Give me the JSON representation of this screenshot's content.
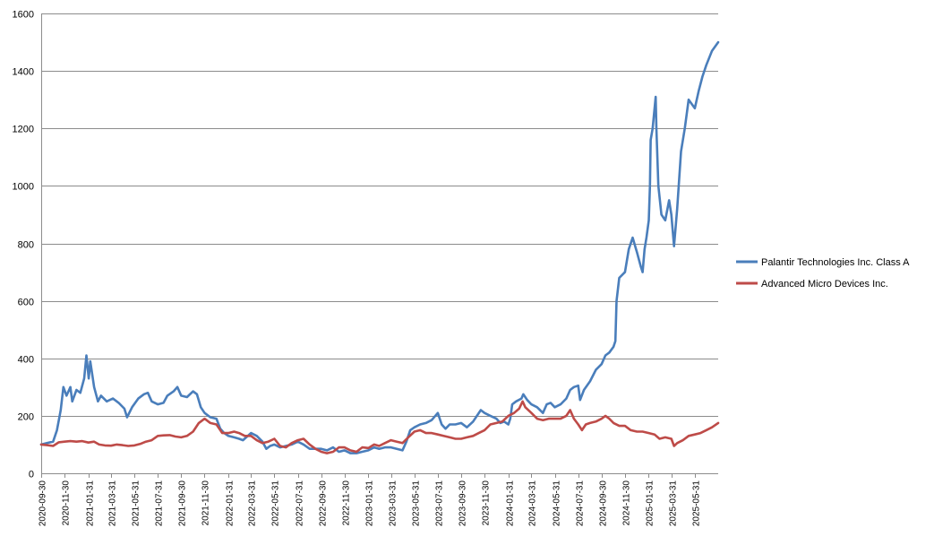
{
  "chart_data": {
    "type": "line",
    "title": "",
    "xlabel": "",
    "ylabel": "",
    "ylim": [
      0,
      1600
    ],
    "y_ticks": [
      0,
      200,
      400,
      600,
      800,
      1000,
      1200,
      1400,
      1600
    ],
    "x_range": [
      "2020-09-30",
      "2025-07-31"
    ],
    "x_tick_labels": [
      "2020-09-30",
      "2020-11-30",
      "2021-01-31",
      "2021-03-31",
      "2021-05-31",
      "2021-07-31",
      "2021-09-30",
      "2021-11-30",
      "2022-01-31",
      "2022-03-31",
      "2022-05-31",
      "2022-07-31",
      "2022-09-30",
      "2022-11-30",
      "2023-01-31",
      "2023-03-31",
      "2023-05-31",
      "2023-07-31",
      "2023-09-30",
      "2023-11-30",
      "2024-01-31",
      "2024-03-31",
      "2024-05-31",
      "2024-07-31",
      "2024-09-30",
      "2024-11-30",
      "2025-01-31",
      "2025-03-31",
      "2025-05-31"
    ],
    "grid": "horizontal",
    "legend_position": "right",
    "series": [
      {
        "name": "Palantir Technologies Inc. Class A",
        "color": "#4a7ebb",
        "points": [
          [
            "2020-09-30",
            100
          ],
          [
            "2020-10-15",
            105
          ],
          [
            "2020-10-31",
            110
          ],
          [
            "2020-11-10",
            150
          ],
          [
            "2020-11-20",
            220
          ],
          [
            "2020-11-27",
            300
          ],
          [
            "2020-12-05",
            270
          ],
          [
            "2020-12-15",
            300
          ],
          [
            "2020-12-20",
            250
          ],
          [
            "2020-12-31",
            290
          ],
          [
            "2021-01-10",
            280
          ],
          [
            "2021-01-20",
            330
          ],
          [
            "2021-01-26",
            410
          ],
          [
            "2021-02-01",
            330
          ],
          [
            "2021-02-05",
            390
          ],
          [
            "2021-02-15",
            300
          ],
          [
            "2021-02-25",
            250
          ],
          [
            "2021-03-05",
            270
          ],
          [
            "2021-03-20",
            250
          ],
          [
            "2021-04-05",
            260
          ],
          [
            "2021-04-20",
            245
          ],
          [
            "2021-05-05",
            225
          ],
          [
            "2021-05-12",
            195
          ],
          [
            "2021-05-25",
            230
          ],
          [
            "2021-06-10",
            260
          ],
          [
            "2021-06-25",
            275
          ],
          [
            "2021-07-05",
            280
          ],
          [
            "2021-07-15",
            250
          ],
          [
            "2021-07-31",
            240
          ],
          [
            "2021-08-15",
            245
          ],
          [
            "2021-08-25",
            270
          ],
          [
            "2021-09-10",
            285
          ],
          [
            "2021-09-20",
            300
          ],
          [
            "2021-09-30",
            270
          ],
          [
            "2021-10-15",
            265
          ],
          [
            "2021-10-31",
            285
          ],
          [
            "2021-11-10",
            275
          ],
          [
            "2021-11-20",
            230
          ],
          [
            "2021-11-30",
            210
          ],
          [
            "2021-12-15",
            195
          ],
          [
            "2021-12-31",
            190
          ],
          [
            "2022-01-10",
            155
          ],
          [
            "2022-01-20",
            140
          ],
          [
            "2022-01-31",
            130
          ],
          [
            "2022-02-15",
            125
          ],
          [
            "2022-02-28",
            120
          ],
          [
            "2022-03-10",
            115
          ],
          [
            "2022-03-31",
            140
          ],
          [
            "2022-04-15",
            130
          ],
          [
            "2022-04-30",
            110
          ],
          [
            "2022-05-10",
            85
          ],
          [
            "2022-05-20",
            95
          ],
          [
            "2022-05-31",
            100
          ],
          [
            "2022-06-15",
            90
          ],
          [
            "2022-06-30",
            95
          ],
          [
            "2022-07-15",
            100
          ],
          [
            "2022-07-31",
            110
          ],
          [
            "2022-08-15",
            100
          ],
          [
            "2022-08-31",
            85
          ],
          [
            "2022-09-15",
            85
          ],
          [
            "2022-09-30",
            85
          ],
          [
            "2022-10-15",
            80
          ],
          [
            "2022-10-31",
            90
          ],
          [
            "2022-11-15",
            75
          ],
          [
            "2022-11-30",
            80
          ],
          [
            "2022-12-15",
            70
          ],
          [
            "2022-12-31",
            70
          ],
          [
            "2023-01-15",
            75
          ],
          [
            "2023-01-31",
            80
          ],
          [
            "2023-02-15",
            90
          ],
          [
            "2023-02-28",
            85
          ],
          [
            "2023-03-15",
            90
          ],
          [
            "2023-03-31",
            90
          ],
          [
            "2023-04-15",
            85
          ],
          [
            "2023-04-30",
            80
          ],
          [
            "2023-05-10",
            110
          ],
          [
            "2023-05-20",
            150
          ],
          [
            "2023-05-31",
            160
          ],
          [
            "2023-06-15",
            170
          ],
          [
            "2023-06-30",
            175
          ],
          [
            "2023-07-15",
            185
          ],
          [
            "2023-07-31",
            210
          ],
          [
            "2023-08-10",
            170
          ],
          [
            "2023-08-20",
            155
          ],
          [
            "2023-08-31",
            170
          ],
          [
            "2023-09-15",
            170
          ],
          [
            "2023-09-30",
            175
          ],
          [
            "2023-10-15",
            160
          ],
          [
            "2023-10-31",
            180
          ],
          [
            "2023-11-10",
            200
          ],
          [
            "2023-11-20",
            220
          ],
          [
            "2023-11-30",
            210
          ],
          [
            "2023-12-15",
            200
          ],
          [
            "2023-12-31",
            190
          ],
          [
            "2024-01-10",
            175
          ],
          [
            "2024-01-20",
            180
          ],
          [
            "2024-01-31",
            170
          ],
          [
            "2024-02-05",
            190
          ],
          [
            "2024-02-10",
            240
          ],
          [
            "2024-02-20",
            250
          ],
          [
            "2024-03-05",
            260
          ],
          [
            "2024-03-10",
            275
          ],
          [
            "2024-03-20",
            255
          ],
          [
            "2024-03-31",
            240
          ],
          [
            "2024-04-15",
            230
          ],
          [
            "2024-04-30",
            210
          ],
          [
            "2024-05-10",
            240
          ],
          [
            "2024-05-20",
            245
          ],
          [
            "2024-05-31",
            230
          ],
          [
            "2024-06-15",
            240
          ],
          [
            "2024-06-30",
            260
          ],
          [
            "2024-07-10",
            290
          ],
          [
            "2024-07-20",
            300
          ],
          [
            "2024-07-31",
            305
          ],
          [
            "2024-08-05",
            255
          ],
          [
            "2024-08-15",
            290
          ],
          [
            "2024-08-31",
            320
          ],
          [
            "2024-09-15",
            360
          ],
          [
            "2024-09-30",
            380
          ],
          [
            "2024-10-10",
            410
          ],
          [
            "2024-10-20",
            420
          ],
          [
            "2024-10-31",
            440
          ],
          [
            "2024-11-05",
            460
          ],
          [
            "2024-11-08",
            600
          ],
          [
            "2024-11-15",
            680
          ],
          [
            "2024-11-30",
            700
          ],
          [
            "2024-12-10",
            780
          ],
          [
            "2024-12-20",
            820
          ],
          [
            "2024-12-31",
            770
          ],
          [
            "2025-01-10",
            720
          ],
          [
            "2025-01-15",
            700
          ],
          [
            "2025-01-20",
            780
          ],
          [
            "2025-01-25",
            820
          ],
          [
            "2025-01-31",
            880
          ],
          [
            "2025-02-03",
            1000
          ],
          [
            "2025-02-05",
            1160
          ],
          [
            "2025-02-10",
            1200
          ],
          [
            "2025-02-18",
            1310
          ],
          [
            "2025-02-20",
            1200
          ],
          [
            "2025-02-25",
            1000
          ],
          [
            "2025-03-05",
            900
          ],
          [
            "2025-03-15",
            880
          ],
          [
            "2025-03-25",
            950
          ],
          [
            "2025-03-31",
            900
          ],
          [
            "2025-04-07",
            790
          ],
          [
            "2025-04-15",
            920
          ],
          [
            "2025-04-25",
            1120
          ],
          [
            "2025-05-05",
            1200
          ],
          [
            "2025-05-15",
            1300
          ],
          [
            "2025-05-31",
            1270
          ],
          [
            "2025-06-10",
            1330
          ],
          [
            "2025-06-20",
            1380
          ],
          [
            "2025-06-30",
            1420
          ],
          [
            "2025-07-15",
            1470
          ],
          [
            "2025-07-31",
            1500
          ]
        ]
      },
      {
        "name": "Advanced Micro Devices Inc.",
        "color": "#be4b48",
        "points": [
          [
            "2020-09-30",
            100
          ],
          [
            "2020-10-15",
            98
          ],
          [
            "2020-10-31",
            95
          ],
          [
            "2020-11-15",
            108
          ],
          [
            "2020-11-30",
            110
          ],
          [
            "2020-12-15",
            112
          ],
          [
            "2020-12-31",
            110
          ],
          [
            "2021-01-15",
            112
          ],
          [
            "2021-01-31",
            107
          ],
          [
            "2021-02-15",
            110
          ],
          [
            "2021-02-28",
            100
          ],
          [
            "2021-03-15",
            97
          ],
          [
            "2021-03-31",
            96
          ],
          [
            "2021-04-15",
            100
          ],
          [
            "2021-04-30",
            98
          ],
          [
            "2021-05-15",
            95
          ],
          [
            "2021-05-31",
            97
          ],
          [
            "2021-06-15",
            102
          ],
          [
            "2021-06-30",
            110
          ],
          [
            "2021-07-15",
            115
          ],
          [
            "2021-07-31",
            130
          ],
          [
            "2021-08-15",
            132
          ],
          [
            "2021-08-31",
            133
          ],
          [
            "2021-09-15",
            128
          ],
          [
            "2021-09-30",
            125
          ],
          [
            "2021-10-15",
            130
          ],
          [
            "2021-10-31",
            145
          ],
          [
            "2021-11-15",
            175
          ],
          [
            "2021-11-30",
            190
          ],
          [
            "2021-12-15",
            175
          ],
          [
            "2021-12-31",
            170
          ],
          [
            "2022-01-15",
            140
          ],
          [
            "2022-01-31",
            140
          ],
          [
            "2022-02-15",
            145
          ],
          [
            "2022-02-28",
            140
          ],
          [
            "2022-03-15",
            130
          ],
          [
            "2022-03-31",
            130
          ],
          [
            "2022-04-15",
            115
          ],
          [
            "2022-04-30",
            105
          ],
          [
            "2022-05-15",
            110
          ],
          [
            "2022-05-31",
            120
          ],
          [
            "2022-06-15",
            95
          ],
          [
            "2022-06-30",
            90
          ],
          [
            "2022-07-15",
            105
          ],
          [
            "2022-07-31",
            115
          ],
          [
            "2022-08-15",
            120
          ],
          [
            "2022-08-31",
            100
          ],
          [
            "2022-09-15",
            85
          ],
          [
            "2022-09-30",
            75
          ],
          [
            "2022-10-15",
            70
          ],
          [
            "2022-10-31",
            75
          ],
          [
            "2022-11-15",
            90
          ],
          [
            "2022-11-30",
            90
          ],
          [
            "2022-12-15",
            80
          ],
          [
            "2022-12-31",
            75
          ],
          [
            "2023-01-15",
            90
          ],
          [
            "2023-01-31",
            88
          ],
          [
            "2023-02-15",
            100
          ],
          [
            "2023-02-28",
            95
          ],
          [
            "2023-03-15",
            105
          ],
          [
            "2023-03-31",
            115
          ],
          [
            "2023-04-15",
            110
          ],
          [
            "2023-04-30",
            105
          ],
          [
            "2023-05-15",
            125
          ],
          [
            "2023-05-31",
            145
          ],
          [
            "2023-06-15",
            150
          ],
          [
            "2023-06-30",
            140
          ],
          [
            "2023-07-15",
            140
          ],
          [
            "2023-07-31",
            135
          ],
          [
            "2023-08-15",
            130
          ],
          [
            "2023-08-31",
            125
          ],
          [
            "2023-09-15",
            120
          ],
          [
            "2023-09-30",
            120
          ],
          [
            "2023-10-15",
            125
          ],
          [
            "2023-10-31",
            130
          ],
          [
            "2023-11-15",
            140
          ],
          [
            "2023-11-30",
            150
          ],
          [
            "2023-12-15",
            170
          ],
          [
            "2023-12-31",
            175
          ],
          [
            "2024-01-15",
            180
          ],
          [
            "2024-01-31",
            200
          ],
          [
            "2024-02-15",
            210
          ],
          [
            "2024-02-28",
            225
          ],
          [
            "2024-03-08",
            250
          ],
          [
            "2024-03-15",
            230
          ],
          [
            "2024-03-31",
            210
          ],
          [
            "2024-04-15",
            190
          ],
          [
            "2024-04-30",
            185
          ],
          [
            "2024-05-15",
            190
          ],
          [
            "2024-05-31",
            190
          ],
          [
            "2024-06-15",
            190
          ],
          [
            "2024-06-30",
            200
          ],
          [
            "2024-07-10",
            220
          ],
          [
            "2024-07-20",
            190
          ],
          [
            "2024-07-31",
            170
          ],
          [
            "2024-08-10",
            150
          ],
          [
            "2024-08-20",
            170
          ],
          [
            "2024-08-31",
            175
          ],
          [
            "2024-09-15",
            180
          ],
          [
            "2024-09-30",
            190
          ],
          [
            "2024-10-10",
            200
          ],
          [
            "2024-10-20",
            190
          ],
          [
            "2024-10-31",
            175
          ],
          [
            "2024-11-15",
            165
          ],
          [
            "2024-11-30",
            165
          ],
          [
            "2024-12-15",
            150
          ],
          [
            "2024-12-31",
            145
          ],
          [
            "2025-01-15",
            145
          ],
          [
            "2025-01-31",
            140
          ],
          [
            "2025-02-15",
            135
          ],
          [
            "2025-02-28",
            120
          ],
          [
            "2025-03-15",
            125
          ],
          [
            "2025-03-31",
            120
          ],
          [
            "2025-04-07",
            95
          ],
          [
            "2025-04-15",
            105
          ],
          [
            "2025-04-30",
            115
          ],
          [
            "2025-05-15",
            130
          ],
          [
            "2025-05-31",
            135
          ],
          [
            "2025-06-15",
            140
          ],
          [
            "2025-06-30",
            150
          ],
          [
            "2025-07-15",
            160
          ],
          [
            "2025-07-31",
            175
          ]
        ]
      }
    ]
  }
}
